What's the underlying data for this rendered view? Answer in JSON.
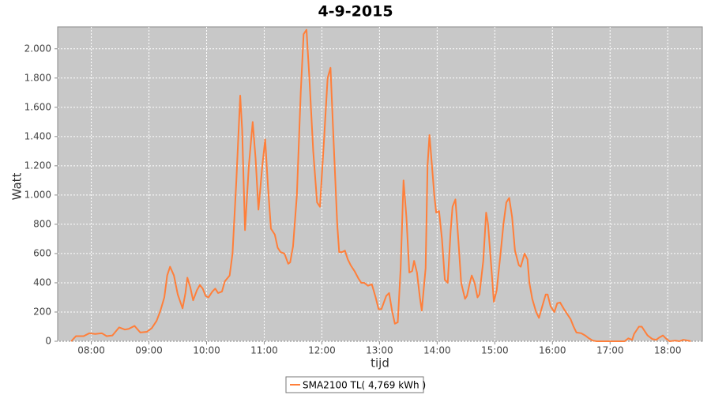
{
  "chart_data": {
    "type": "line",
    "title": "4-9-2015",
    "x_label": "tijd",
    "y_label": "Watt",
    "x": [
      459,
      464,
      472,
      478,
      484,
      491,
      496,
      502,
      509,
      515,
      519,
      525,
      531,
      538,
      543,
      548,
      552,
      556,
      559,
      562,
      566,
      570,
      575,
      578,
      580,
      583,
      586,
      590,
      593,
      596,
      599,
      602,
      606,
      609,
      612,
      616,
      619,
      624,
      627,
      631,
      635,
      637,
      640,
      644,
      648,
      651,
      654,
      658,
      661,
      664,
      667,
      671,
      674,
      677,
      681,
      685,
      687,
      690,
      694,
      698,
      701,
      704,
      707,
      711,
      715,
      718,
      722,
      726,
      729,
      732,
      736,
      738,
      741,
      744,
      747,
      750,
      754,
      758,
      761,
      764,
      768,
      772,
      776,
      779,
      782,
      787,
      790,
      793,
      796,
      799,
      802,
      805,
      808,
      811,
      814,
      816,
      819,
      822,
      824,
      828,
      830,
      832,
      834,
      837,
      839,
      842,
      845,
      848,
      851,
      854,
      856,
      859,
      862,
      865,
      869,
      871,
      874,
      876,
      879,
      882,
      884,
      888,
      891,
      893,
      897,
      899,
      902,
      906,
      909,
      912,
      915,
      918,
      921,
      925,
      927,
      931,
      934,
      936,
      939,
      943,
      946,
      949,
      953,
      955,
      958,
      962,
      965,
      968,
      972,
      975,
      979,
      982,
      985,
      990,
      994,
      998,
      1002,
      1006,
      1027,
      1035,
      1039,
      1043,
      1045,
      1050,
      1053,
      1056,
      1059,
      1064,
      1068,
      1071,
      1075,
      1078,
      1082,
      1088,
      1092,
      1096,
      1101,
      1104
    ],
    "series": [
      {
        "name": "SMA2100 TL( 4,769 kWh )",
        "color": "#ff7f3a",
        "values": [
          0,
          35,
          35,
          55,
          50,
          55,
          35,
          40,
          95,
          80,
          85,
          105,
          60,
          65,
          90,
          140,
          210,
          300,
          450,
          510,
          450,
          320,
          225,
          330,
          435,
          370,
          280,
          350,
          385,
          360,
          310,
          300,
          340,
          360,
          330,
          340,
          410,
          450,
          600,
          1100,
          1680,
          1450,
          760,
          1200,
          1500,
          1250,
          900,
          1200,
          1380,
          1050,
          770,
          730,
          640,
          610,
          600,
          530,
          540,
          650,
          1000,
          1700,
          2100,
          2130,
          1800,
          1300,
          950,
          920,
          1350,
          1800,
          1870,
          1400,
          800,
          610,
          610,
          620,
          560,
          520,
          480,
          430,
          400,
          400,
          380,
          390,
          300,
          220,
          220,
          310,
          330,
          210,
          120,
          130,
          500,
          1100,
          850,
          470,
          480,
          550,
          470,
          300,
          210,
          500,
          1200,
          1410,
          1250,
          1000,
          880,
          890,
          700,
          420,
          400,
          750,
          920,
          970,
          700,
          400,
          290,
          310,
          400,
          450,
          400,
          300,
          320,
          550,
          880,
          800,
          450,
          270,
          350,
          600,
          800,
          950,
          980,
          850,
          620,
          520,
          510,
          600,
          560,
          400,
          290,
          200,
          160,
          230,
          320,
          320,
          240,
          200,
          260,
          265,
          220,
          190,
          150,
          100,
          60,
          55,
          40,
          20,
          5,
          0,
          0,
          0,
          20,
          10,
          50,
          100,
          100,
          70,
          40,
          15,
          10,
          25,
          40,
          20,
          0,
          5,
          0,
          10,
          5,
          0
        ]
      }
    ],
    "xlim": [
      445,
      1116
    ],
    "xticks": [
      {
        "value": 480,
        "label": "08:00"
      },
      {
        "value": 540,
        "label": "09:00"
      },
      {
        "value": 600,
        "label": "10:00"
      },
      {
        "value": 660,
        "label": "11:00"
      },
      {
        "value": 720,
        "label": "12:00"
      },
      {
        "value": 780,
        "label": "13:00"
      },
      {
        "value": 840,
        "label": "14:00"
      },
      {
        "value": 900,
        "label": "15:00"
      },
      {
        "value": 960,
        "label": "16:00"
      },
      {
        "value": 1020,
        "label": "17:00"
      },
      {
        "value": 1080,
        "label": "18:00"
      }
    ],
    "ylim": [
      0,
      2150
    ],
    "yticks": [
      0,
      200,
      400,
      600,
      800,
      {
        "value": 1000,
        "label": "1.000"
      },
      {
        "value": 1200,
        "label": "1.200"
      },
      {
        "value": 1400,
        "label": "1.400"
      },
      {
        "value": 1600,
        "label": "1.600"
      },
      {
        "value": 1800,
        "label": "1.800"
      },
      {
        "value": 2000,
        "label": "2.000"
      }
    ],
    "grid": true,
    "legend": "bottom"
  }
}
